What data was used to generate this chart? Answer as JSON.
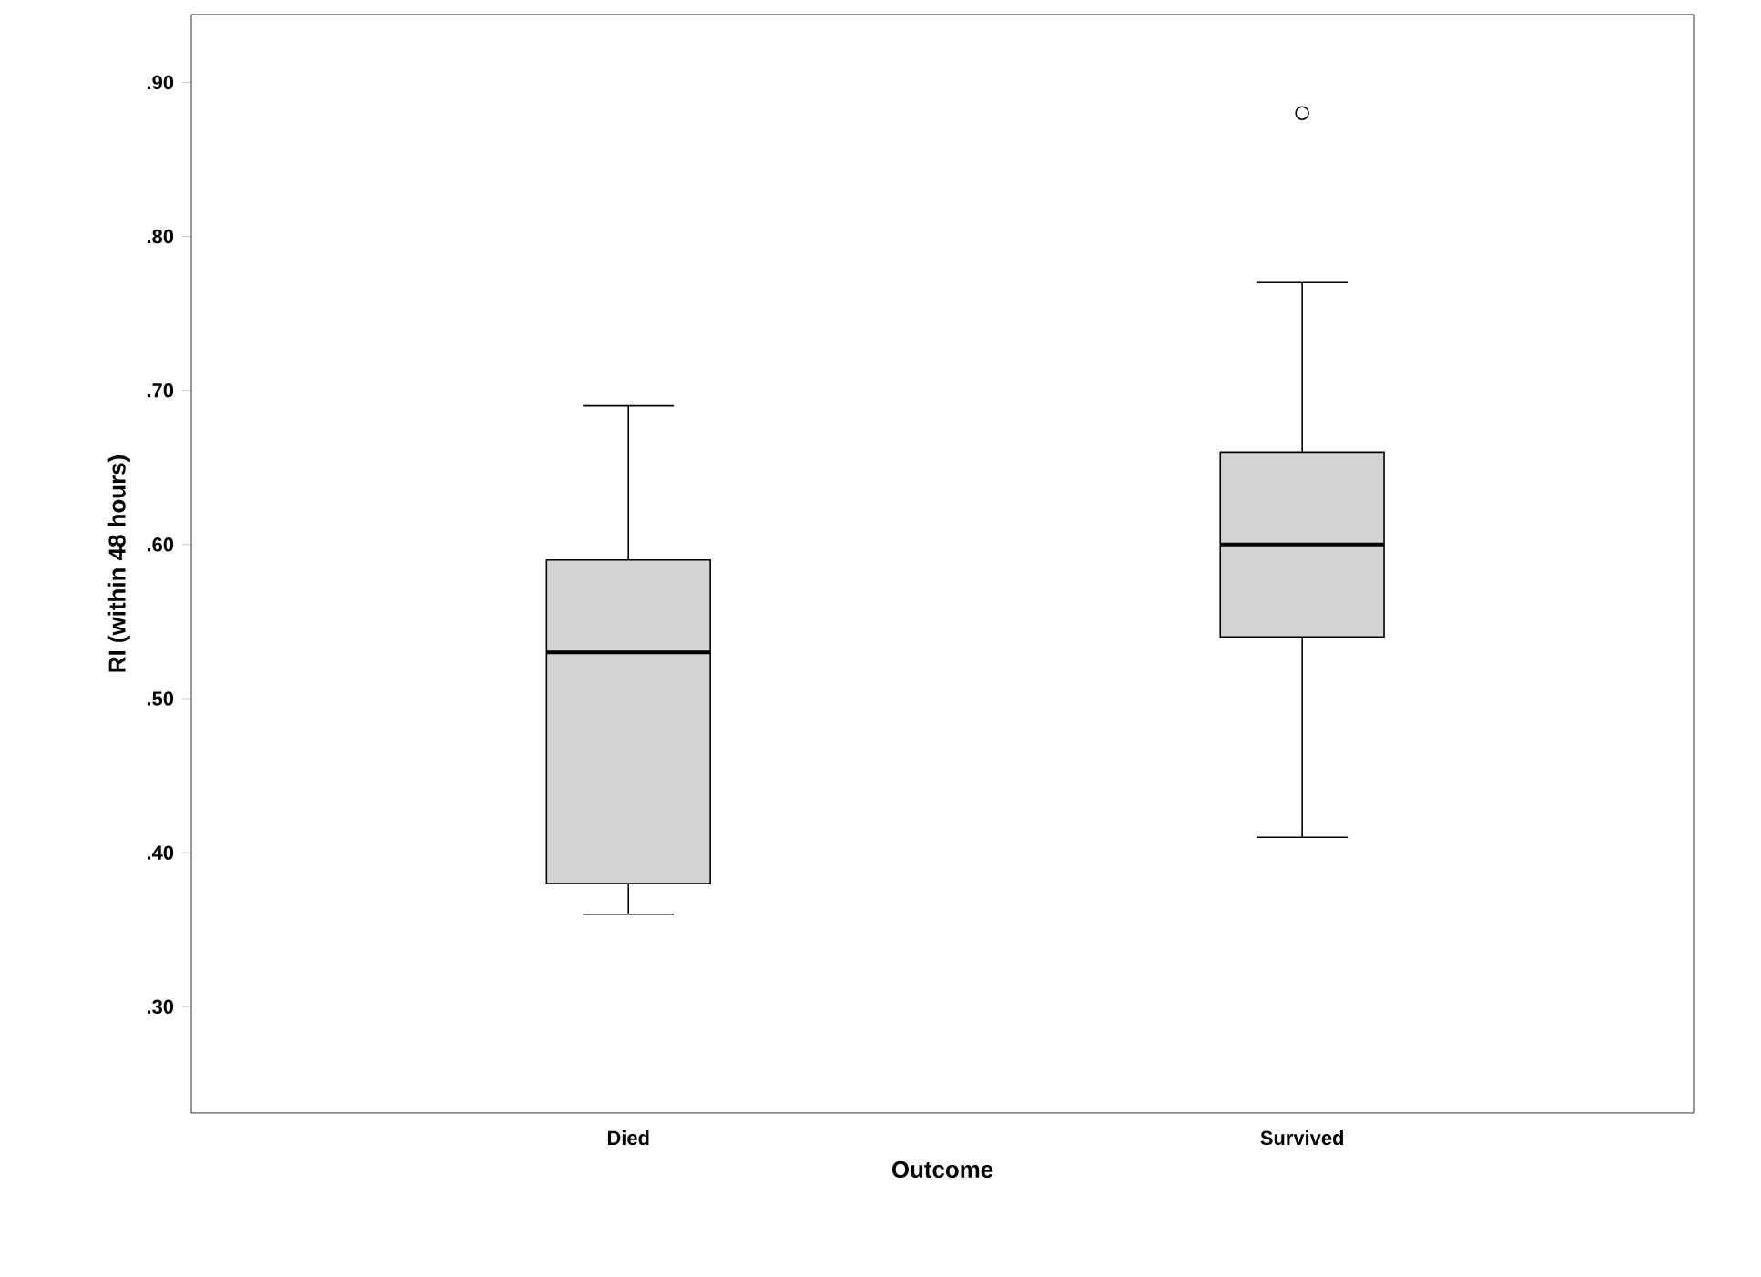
{
  "chart_data": {
    "type": "box",
    "xlabel": "Outcome",
    "ylabel": "RI (within 48 hours)",
    "categories": [
      "Died",
      "Survived"
    ],
    "color": "#d3d3d3",
    "marker": "circle",
    "boxes": [
      {
        "low": 0.36,
        "q1": 0.38,
        "median": 0.53,
        "q3": 0.59,
        "high": 0.69
      },
      {
        "low": 0.41,
        "q1": 0.54,
        "median": 0.6,
        "q3": 0.66,
        "high": 0.77,
        "outliers": [
          0.88
        ]
      }
    ],
    "ylim": [
      0.231,
      0.944
    ],
    "yticks": [
      {
        "value": 0.3,
        "label": ".30"
      },
      {
        "value": 0.4,
        "label": ".40"
      },
      {
        "value": 0.5,
        "label": ".50"
      },
      {
        "value": 0.6,
        "label": ".60"
      },
      {
        "value": 0.7,
        "label": ".70"
      },
      {
        "value": 0.8,
        "label": ".80"
      },
      {
        "value": 0.9,
        "label": ".90"
      }
    ]
  }
}
